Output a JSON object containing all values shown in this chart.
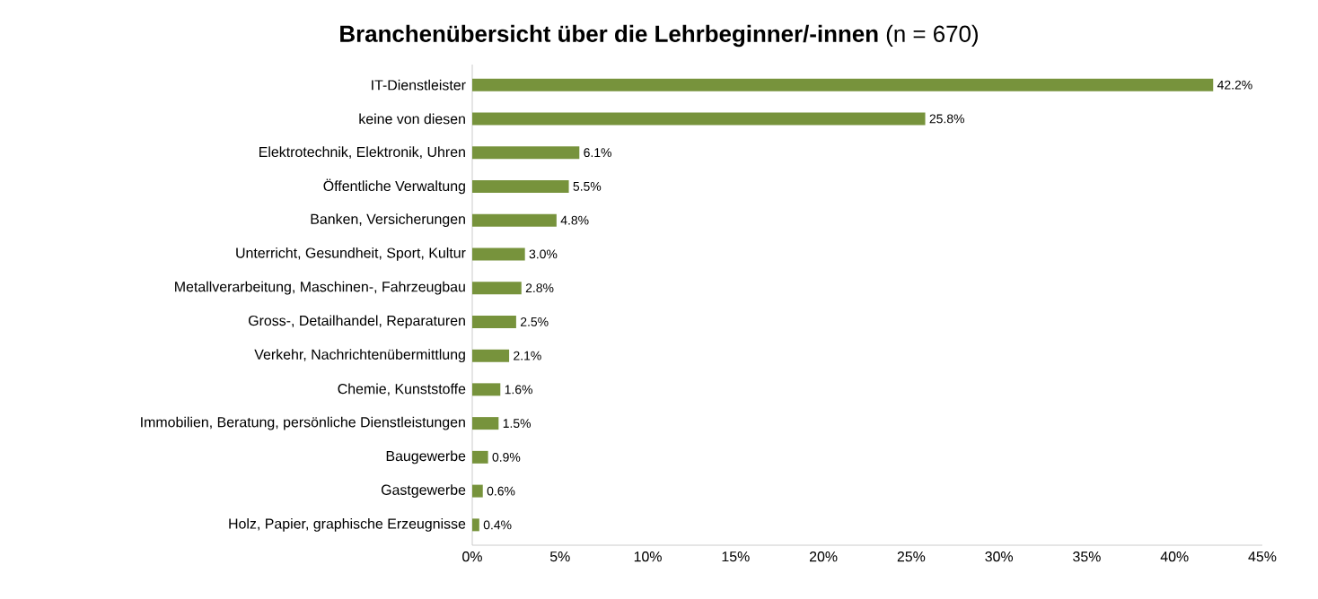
{
  "chart_data": {
    "type": "bar",
    "orientation": "horizontal",
    "title": "**Branchenübersicht über die Lehrbeginner/-innen** (n = 670)",
    "categories": [
      "IT-Dienstleister",
      "keine von diesen",
      "Elektrotechnik, Elektronik, Uhren",
      "Öffentliche Verwaltung",
      "Banken, Versicherungen",
      "Unterricht, Gesundheit, Sport, Kultur",
      "Metallverarbeitung, Maschinen-, Fahrzeugbau",
      "Gross-, Detailhandel, Reparaturen",
      "Verkehr, Nachrichtenübermittlung",
      "Chemie, Kunststoffe",
      "Immobilien, Beratung, persönliche Dienstleistungen",
      "Baugewerbe",
      "Gastgewerbe",
      "Holz, Papier, graphische Erzeugnisse"
    ],
    "values": [
      42.2,
      25.8,
      6.1,
      5.5,
      4.8,
      3.0,
      2.8,
      2.5,
      2.1,
      1.6,
      1.5,
      0.9,
      0.6,
      0.4
    ],
    "value_labels": [
      "42.2%",
      "25.8%",
      "6.1%",
      "5.5%",
      "4.8%",
      "3.0%",
      "2.8%",
      "2.5%",
      "2.1%",
      "1.6%",
      "1.5%",
      "0.9%",
      "0.6%",
      "0.4%"
    ],
    "color": "#77933c",
    "xlim": [
      0,
      45
    ],
    "xticks": [
      {
        "value": 0,
        "label": "0%"
      },
      {
        "value": 5,
        "label": "5%"
      },
      {
        "value": 10,
        "label": "10%"
      },
      {
        "value": 15,
        "label": "15%"
      },
      {
        "value": 20,
        "label": "20%"
      },
      {
        "value": 25,
        "label": "25%"
      },
      {
        "value": 30,
        "label": "30%"
      },
      {
        "value": 35,
        "label": "35%"
      },
      {
        "value": 40,
        "label": "40%"
      },
      {
        "value": 45,
        "label": "45%"
      }
    ],
    "grid": false
  }
}
